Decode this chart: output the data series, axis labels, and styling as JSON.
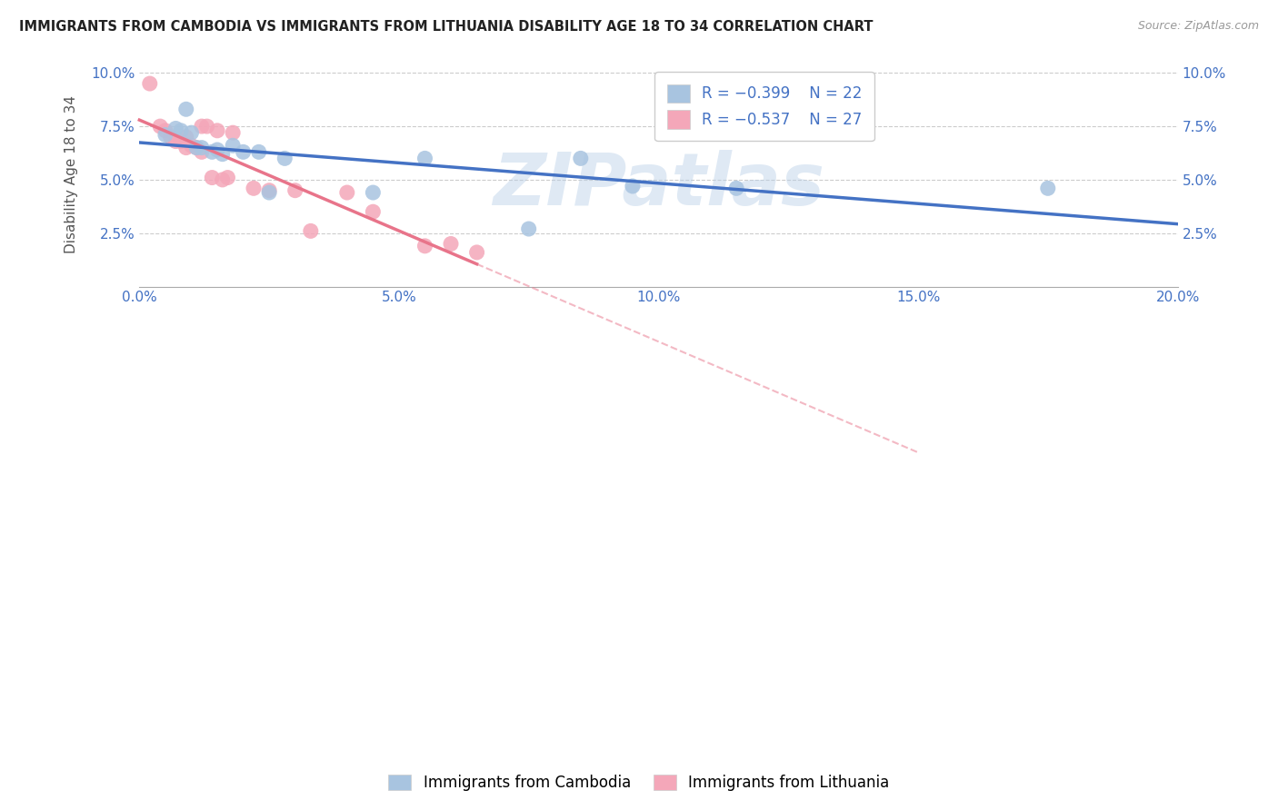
{
  "title": "IMMIGRANTS FROM CAMBODIA VS IMMIGRANTS FROM LITHUANIA DISABILITY AGE 18 TO 34 CORRELATION CHART",
  "source": "Source: ZipAtlas.com",
  "ylabel": "Disability Age 18 to 34",
  "xlim": [
    0.0,
    0.2
  ],
  "ylim": [
    0.0,
    0.105
  ],
  "xticks": [
    0.0,
    0.05,
    0.1,
    0.15,
    0.2
  ],
  "yticks": [
    0.025,
    0.05,
    0.075,
    0.1
  ],
  "xtick_labels": [
    "0.0%",
    "5.0%",
    "10.0%",
    "15.0%",
    "20.0%"
  ],
  "ytick_labels": [
    "2.5%",
    "5.0%",
    "7.5%",
    "10.0%"
  ],
  "cambodia_color": "#a8c4e0",
  "lithuania_color": "#f4a7b9",
  "trendline_cambodia_color": "#4472c4",
  "trendline_lithuania_color": "#e8748a",
  "watermark": "ZIPatlas",
  "legend_R_cambodia": "-0.399",
  "legend_N_cambodia": "22",
  "legend_R_lithuania": "-0.537",
  "legend_N_lithuania": "27",
  "cambodia_x": [
    0.005,
    0.007,
    0.008,
    0.009,
    0.01,
    0.011,
    0.012,
    0.014,
    0.015,
    0.016,
    0.018,
    0.02,
    0.023,
    0.025,
    0.028,
    0.045,
    0.055,
    0.075,
    0.085,
    0.095,
    0.115,
    0.175
  ],
  "cambodia_y": [
    0.071,
    0.074,
    0.073,
    0.083,
    0.072,
    0.065,
    0.065,
    0.063,
    0.064,
    0.062,
    0.066,
    0.063,
    0.063,
    0.044,
    0.06,
    0.044,
    0.06,
    0.027,
    0.06,
    0.047,
    0.046,
    0.046
  ],
  "lithuania_x": [
    0.002,
    0.004,
    0.005,
    0.006,
    0.007,
    0.008,
    0.009,
    0.009,
    0.01,
    0.011,
    0.012,
    0.012,
    0.013,
    0.014,
    0.015,
    0.016,
    0.017,
    0.018,
    0.022,
    0.025,
    0.03,
    0.033,
    0.04,
    0.045,
    0.055,
    0.06,
    0.065
  ],
  "lithuania_y": [
    0.095,
    0.075,
    0.073,
    0.07,
    0.068,
    0.068,
    0.07,
    0.065,
    0.066,
    0.065,
    0.063,
    0.075,
    0.075,
    0.051,
    0.073,
    0.05,
    0.051,
    0.072,
    0.046,
    0.045,
    0.045,
    0.026,
    0.044,
    0.035,
    0.019,
    0.02,
    0.016
  ]
}
